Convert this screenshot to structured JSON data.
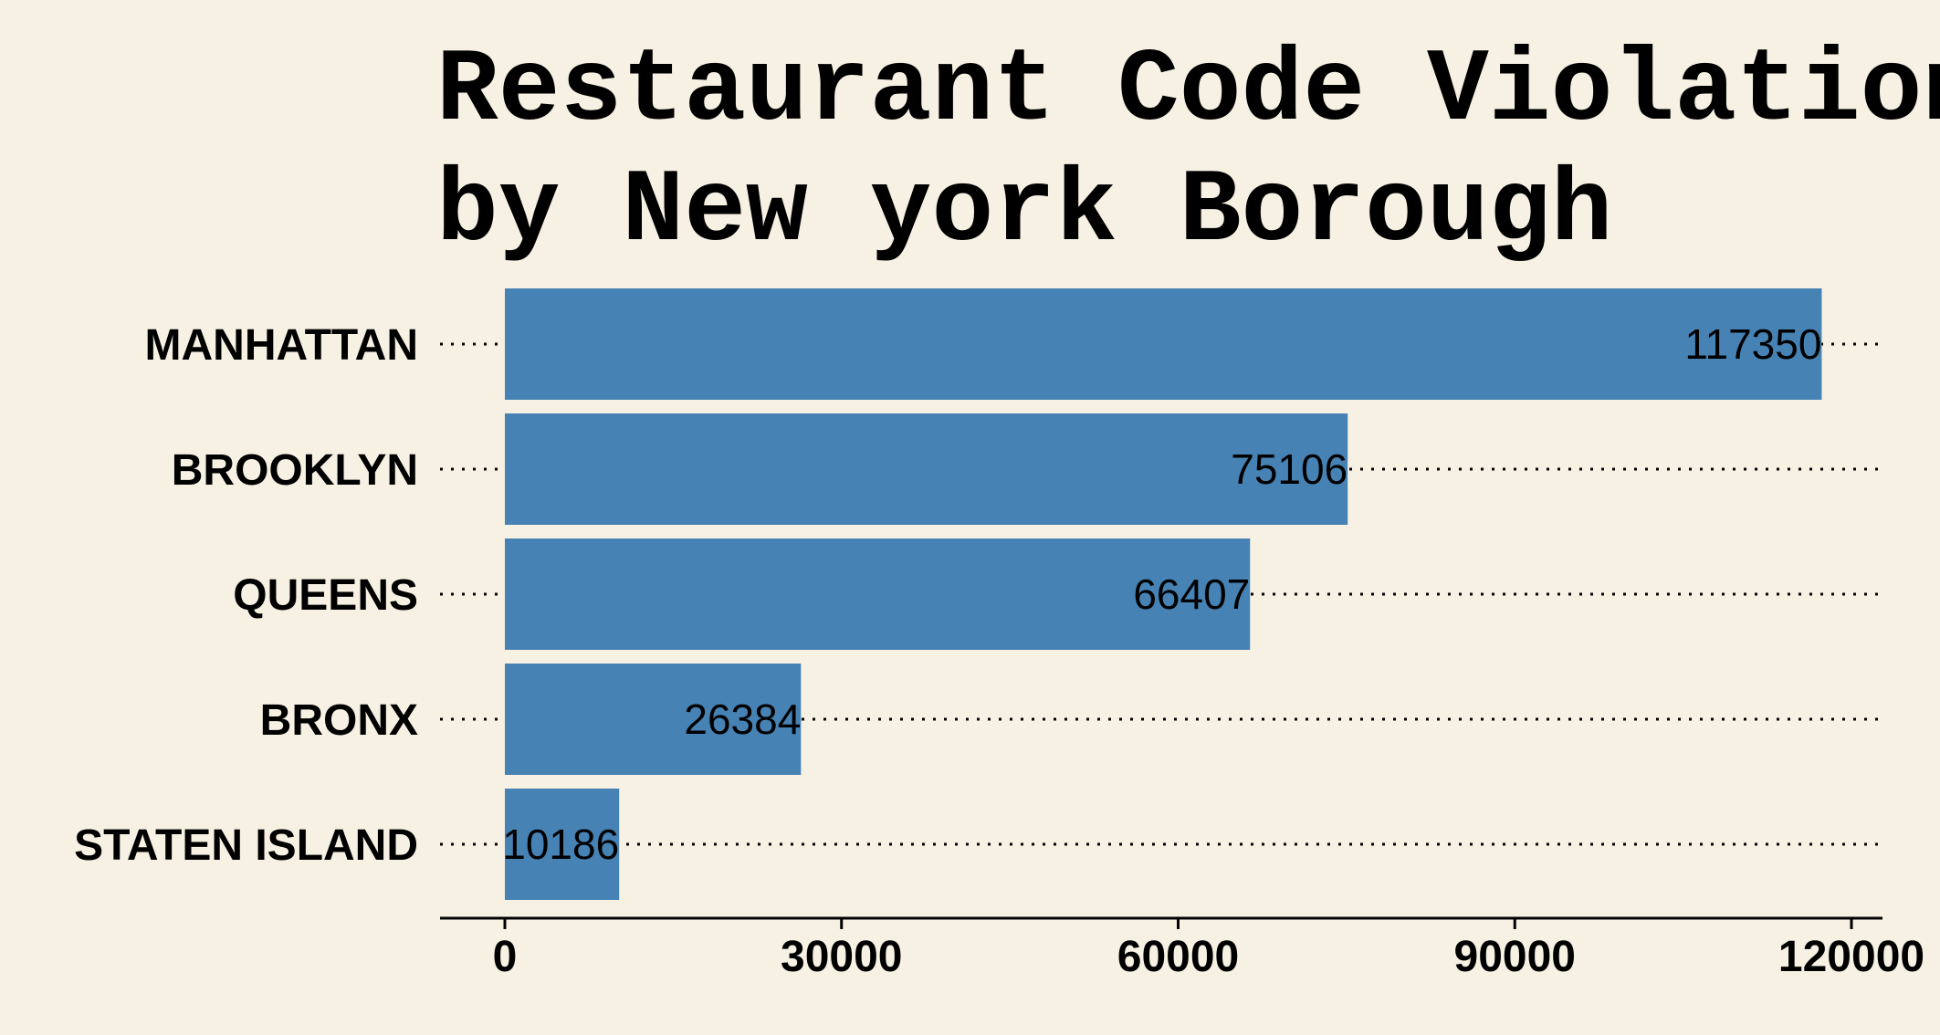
{
  "chart_data": {
    "type": "bar",
    "orientation": "horizontal",
    "title_lines": [
      "Restaurant Code Violations",
      "by New york Borough"
    ],
    "categories": [
      "MANHATTAN",
      "BROOKLYN",
      "QUEENS",
      "BRONX",
      "STATEN ISLAND"
    ],
    "values": [
      117350,
      75106,
      66407,
      26384,
      10186
    ],
    "value_labels": [
      "117350",
      "75106",
      "66407",
      "26384",
      "10186"
    ],
    "xticks": [
      0,
      30000,
      60000,
      90000,
      120000
    ],
    "xtick_labels": [
      "0",
      "30000",
      "60000",
      "90000",
      "120000"
    ],
    "xlim": [
      0,
      120000
    ],
    "xlabel": "",
    "ylabel": "",
    "grid": "dotted horizontal guides per bar",
    "colors": {
      "background": "#f7f1e4",
      "bar": "#4682b4",
      "text": "#000000"
    }
  }
}
